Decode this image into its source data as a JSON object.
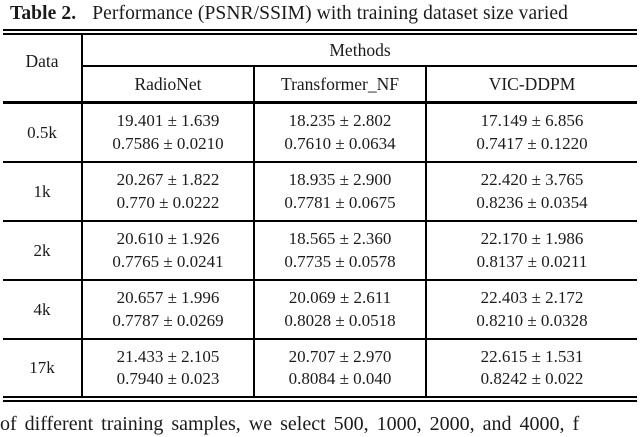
{
  "page": {
    "background": "#ffffff",
    "text_color": "#1b1b1b",
    "rule_color": "#000000"
  },
  "title": {
    "label": "Table 2.",
    "text": "Performance (PSNR/SSIM) with training dataset size varied"
  },
  "table": {
    "data_header": "Data",
    "methods_header": "Methods",
    "columns": [
      "RadioNet",
      "Transformer_NF",
      "VIC-DDPM"
    ],
    "rows": [
      {
        "label": "0.5k",
        "cells": [
          {
            "psnr": "19.401 ± 1.639",
            "ssim": "0.7586 ± 0.0210"
          },
          {
            "psnr": "18.235 ± 2.802",
            "ssim": "0.7610 ± 0.0634"
          },
          {
            "psnr": "17.149 ± 6.856",
            "ssim": "0.7417 ± 0.1220"
          }
        ]
      },
      {
        "label": "1k",
        "cells": [
          {
            "psnr": "20.267 ± 1.822",
            "ssim": "0.770 ± 0.0222"
          },
          {
            "psnr": "18.935 ± 2.900",
            "ssim": "0.7781 ± 0.0675"
          },
          {
            "psnr": "22.420 ± 3.765",
            "ssim": "0.8236 ± 0.0354"
          }
        ]
      },
      {
        "label": "2k",
        "cells": [
          {
            "psnr": "20.610 ± 1.926",
            "ssim": "0.7765 ± 0.0241"
          },
          {
            "psnr": "18.565 ± 2.360",
            "ssim": "0.7735 ± 0.0578"
          },
          {
            "psnr": "22.170 ± 1.986",
            "ssim": "0.8137 ± 0.0211"
          }
        ]
      },
      {
        "label": "4k",
        "cells": [
          {
            "psnr": "20.657 ± 1.996",
            "ssim": "0.7787 ± 0.0269"
          },
          {
            "psnr": "20.069 ± 2.611",
            "ssim": "0.8028 ± 0.0518"
          },
          {
            "psnr": "22.403 ± 2.172",
            "ssim": "0.8210 ± 0.0328"
          }
        ]
      },
      {
        "label": "17k",
        "cells": [
          {
            "psnr": "21.433 ± 2.105",
            "ssim": "0.7940 ± 0.023"
          },
          {
            "psnr": "20.707 ± 2.970",
            "ssim": "0.8084 ± 0.040"
          },
          {
            "psnr": "22.615 ± 1.531",
            "ssim": "0.8242 ± 0.022"
          }
        ]
      }
    ]
  },
  "body_text": {
    "fragment": "of different training samples, we select 500, 1000, 2000, and 4000, f"
  }
}
